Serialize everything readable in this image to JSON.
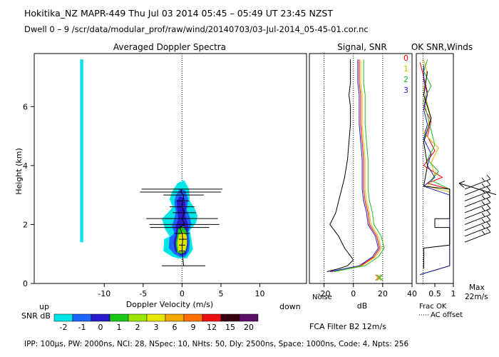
{
  "header": {
    "title": "Hokitika_NZ   MAPR-449   Thu Jul 03 2014 05:45 – 05:49 UT 23:45 NZST",
    "subtitle": "Dwell   0 –   9    /scr/data/modular_prof/raw/wind/20140703/03-Jul-2014_05-45-01.cor.nc"
  },
  "footer": {
    "params": "IPP: 100μs,  PW: 2000ns,  NCI:  28,  NSpec: 10,  NHts: 50,  Dly: 2500ns,  Space: 1000ns,  Code: 4,  Npts: 256",
    "filter": "FCA Filter B2 12m/s"
  },
  "colorbar": {
    "label": "SNR dB",
    "ticks": [
      "-2",
      "-1",
      "0",
      "1",
      "2",
      "3",
      "6",
      "9",
      "12",
      "15",
      "20"
    ],
    "colors": [
      "#00e5e5",
      "#1e64ff",
      "#2a1acc",
      "#1ac81a",
      "#9be400",
      "#e6e600",
      "#f2a800",
      "#ff7000",
      "#ee1010",
      "#3a0010",
      "#5a1066"
    ]
  },
  "chart_data": [
    {
      "type": "heatmap",
      "title": "Averaged Doppler Spectra",
      "xlabel": "Doppler Velocity (m/s)",
      "ylabel": "Height (km)",
      "xlim": [
        -19,
        16
      ],
      "ylim": [
        0,
        7.8
      ],
      "x_ticks": [
        -10,
        -5,
        0,
        5,
        10
      ],
      "y_ticks": [
        0,
        2,
        4,
        6
      ],
      "x_left_label": "up",
      "x_right_label": "down",
      "grid": false,
      "zero_line": "dotted",
      "contours": [
        {
          "snr_db": -2,
          "color": "#00e5e5",
          "points": [
            [
              -0.4,
              0.85
            ],
            [
              -1.2,
              0.9
            ],
            [
              -2.4,
              1.1
            ],
            [
              -2.3,
              1.5
            ],
            [
              -1.6,
              1.6
            ],
            [
              -2.2,
              1.85
            ],
            [
              -2.6,
              2.2
            ],
            [
              -1.8,
              2.4
            ],
            [
              -1.2,
              2.6
            ],
            [
              -1.6,
              2.85
            ],
            [
              -1.3,
              3.1
            ],
            [
              -0.6,
              3.4
            ],
            [
              0.3,
              3.5
            ],
            [
              0.9,
              3.2
            ],
            [
              1.0,
              2.8
            ],
            [
              1.6,
              2.55
            ],
            [
              2.0,
              2.3
            ],
            [
              1.8,
              2.05
            ],
            [
              1.0,
              1.8
            ],
            [
              1.2,
              1.5
            ],
            [
              1.4,
              1.15
            ],
            [
              0.6,
              0.85
            ]
          ]
        },
        {
          "snr_db": -1,
          "color": "#1e64ff",
          "points": [
            [
              -0.3,
              0.9
            ],
            [
              -1.0,
              1.0
            ],
            [
              -1.7,
              1.2
            ],
            [
              -1.6,
              1.55
            ],
            [
              -1.0,
              1.7
            ],
            [
              -1.3,
              1.95
            ],
            [
              -1.0,
              2.2
            ],
            [
              -0.8,
              2.45
            ],
            [
              -1.0,
              2.75
            ],
            [
              -0.8,
              3.0
            ],
            [
              -0.3,
              3.2
            ],
            [
              0.4,
              3.15
            ],
            [
              0.8,
              2.85
            ],
            [
              0.6,
              2.5
            ],
            [
              1.0,
              2.25
            ],
            [
              1.2,
              2.0
            ],
            [
              0.8,
              1.75
            ],
            [
              1.0,
              1.45
            ],
            [
              0.9,
              1.1
            ],
            [
              0.4,
              0.9
            ]
          ]
        },
        {
          "snr_db": 0,
          "color": "#2a1acc",
          "points": [
            [
              -0.2,
              0.95
            ],
            [
              -0.9,
              1.1
            ],
            [
              -1.1,
              1.4
            ],
            [
              -0.8,
              1.7
            ],
            [
              -0.8,
              1.95
            ],
            [
              -0.5,
              2.2
            ],
            [
              -0.6,
              2.5
            ],
            [
              -0.7,
              2.8
            ],
            [
              -0.3,
              2.95
            ],
            [
              0.3,
              2.9
            ],
            [
              0.5,
              2.6
            ],
            [
              0.4,
              2.3
            ],
            [
              0.8,
              2.0
            ],
            [
              0.7,
              1.7
            ],
            [
              0.8,
              1.35
            ],
            [
              0.5,
              1.0
            ]
          ]
        },
        {
          "snr_db": 1,
          "color": "#1ac81a",
          "points": [
            [
              -0.6,
              1.05
            ],
            [
              -0.8,
              1.35
            ],
            [
              -0.6,
              1.65
            ],
            [
              -0.5,
              1.85
            ],
            [
              0.1,
              1.95
            ],
            [
              0.6,
              1.75
            ],
            [
              0.7,
              1.4
            ],
            [
              0.5,
              1.1
            ],
            [
              0.0,
              1.0
            ]
          ]
        },
        {
          "snr_db": 3,
          "color": "#e6e600",
          "points": [
            [
              -0.5,
              1.1
            ],
            [
              -0.6,
              1.4
            ],
            [
              -0.4,
              1.65
            ],
            [
              0.2,
              1.75
            ],
            [
              0.6,
              1.6
            ],
            [
              0.6,
              1.3
            ],
            [
              0.4,
              1.1
            ],
            [
              0.0,
              1.05
            ]
          ]
        },
        {
          "snr_db": 0,
          "color": "#2a1acc",
          "points": [
            [
              -0.4,
              2.45
            ],
            [
              -0.5,
              2.75
            ],
            [
              -0.2,
              2.9
            ],
            [
              0.3,
              2.85
            ],
            [
              0.4,
              2.6
            ],
            [
              0.1,
              2.45
            ]
          ]
        },
        {
          "snr_db": -2,
          "color": "#00e5e5",
          "points": [
            [
              -13.1,
              1.4
            ],
            [
              -12.7,
              1.4
            ],
            [
              -12.7,
              7.6
            ],
            [
              -13.1,
              7.6
            ]
          ]
        }
      ],
      "error_bars": [
        {
          "height": 0.6,
          "center": 0.2,
          "half_width": 2.8
        },
        {
          "height": 1.1,
          "center": 0.0,
          "half_width": 0.4
        },
        {
          "height": 1.3,
          "center": 0.0,
          "half_width": 0.4
        },
        {
          "height": 1.5,
          "center": 0.1,
          "half_width": 0.5
        },
        {
          "height": 1.7,
          "center": 0.0,
          "half_width": 1.0
        },
        {
          "height": 1.9,
          "center": -0.3,
          "half_width": 3.8
        },
        {
          "height": 2.0,
          "center": 0.3,
          "half_width": 4.5
        },
        {
          "height": 2.2,
          "center": 0.0,
          "half_width": 4.6
        },
        {
          "height": 2.4,
          "center": 0.3,
          "half_width": 1.5
        },
        {
          "height": 2.6,
          "center": 0.0,
          "half_width": 1.6
        },
        {
          "height": 2.8,
          "center": 0.1,
          "half_width": 0.8
        },
        {
          "height": 3.0,
          "center": 0.2,
          "half_width": 2.6
        },
        {
          "height": 3.1,
          "center": -0.2,
          "half_width": 5.2
        },
        {
          "height": 3.2,
          "center": 0.0,
          "half_width": 5.2
        }
      ]
    },
    {
      "type": "line",
      "title": "Signal, SNR",
      "xlabel": "dB",
      "xlim": [
        -30,
        40
      ],
      "ylim": [
        0,
        7.8
      ],
      "x_ticks": [
        -20,
        0,
        20,
        40
      ],
      "reference_lines": [
        -20,
        0,
        20
      ],
      "annotations": [
        "Noise"
      ],
      "series": [
        {
          "name": "0",
          "color": "#ff0000",
          "x": [
            -15,
            -5,
            5,
            14,
            18,
            16,
            11,
            10,
            8,
            7,
            7,
            7,
            6,
            5,
            5,
            5,
            4,
            4,
            4,
            4
          ],
          "y": [
            0.4,
            0.5,
            0.6,
            0.9,
            1.2,
            1.6,
            2.0,
            2.4,
            2.8,
            3.2,
            3.6,
            4.2,
            4.8,
            5.4,
            6.0,
            6.4,
            6.8,
            7.0,
            7.3,
            7.6
          ]
        },
        {
          "name": "1",
          "color": "#e6b800",
          "x": [
            -14,
            -4,
            6,
            15,
            19,
            17,
            12,
            11,
            9,
            8,
            8,
            8,
            7,
            6,
            6,
            6,
            5,
            5,
            5,
            5
          ],
          "y": [
            0.4,
            0.5,
            0.6,
            0.9,
            1.2,
            1.6,
            2.0,
            2.4,
            2.8,
            3.2,
            3.6,
            4.2,
            4.8,
            5.4,
            6.0,
            6.4,
            6.8,
            7.0,
            7.3,
            7.6
          ]
        },
        {
          "name": "2",
          "color": "#20c020",
          "x": [
            -13,
            -3,
            8,
            17,
            21,
            19,
            14,
            13,
            11,
            10,
            10,
            10,
            9,
            8,
            8,
            8,
            7,
            7,
            7,
            7
          ],
          "y": [
            0.4,
            0.5,
            0.6,
            0.9,
            1.2,
            1.6,
            2.0,
            2.4,
            2.8,
            3.2,
            3.6,
            4.2,
            4.8,
            5.4,
            6.0,
            6.4,
            6.8,
            7.0,
            7.3,
            7.6
          ]
        },
        {
          "name": "3",
          "color": "#2020c0",
          "x": [
            -16,
            -6,
            4,
            13,
            17,
            15,
            10,
            9,
            7,
            6,
            6,
            6,
            5,
            4,
            4,
            4,
            3,
            3,
            3,
            3
          ],
          "y": [
            0.4,
            0.5,
            0.6,
            0.9,
            1.2,
            1.6,
            2.0,
            2.4,
            2.8,
            3.2,
            3.6,
            4.2,
            4.8,
            5.4,
            6.0,
            6.4,
            6.8,
            7.0,
            7.3,
            7.6
          ]
        },
        {
          "name": "",
          "color": "#000000",
          "x": [
            -18,
            -10,
            -4,
            0,
            -6,
            -10,
            -16,
            -12,
            -10,
            -8,
            -6,
            -4,
            -3,
            -2,
            -2,
            -3,
            -2,
            -2,
            -2
          ],
          "y": [
            0.4,
            0.5,
            0.6,
            0.8,
            1.2,
            1.6,
            2.0,
            2.4,
            2.8,
            3.2,
            3.6,
            4.2,
            4.8,
            5.4,
            6.0,
            6.4,
            6.8,
            7.2,
            7.6
          ]
        }
      ],
      "markers": [
        {
          "x": 17,
          "y": 0.2
        },
        {
          "x": 18,
          "y": 0.2
        }
      ]
    },
    {
      "type": "line",
      "title": "OK SNR,Winds",
      "xlabel": "Frac OK",
      "xlim": [
        0,
        1
      ],
      "ylim": [
        0,
        7.8
      ],
      "x_ticks": [
        0.5,
        1
      ],
      "legend": [
        "0",
        "1",
        "2",
        "3"
      ],
      "legend_colors": [
        "#ff0000",
        "#e6b800",
        "#20c020",
        "#2020c0"
      ],
      "annotations": [
        "AC offset",
        "Max",
        "22m/s"
      ],
      "series": [
        {
          "name": "0",
          "color": "#ff0000",
          "x": [
            0.1,
            0.9,
            0.9,
            0.9,
            0.9,
            0.3,
            0.7,
            0.2,
            0.5,
            0.3,
            0.4,
            0.2,
            0.3,
            0.2,
            0.1
          ],
          "y": [
            0.3,
            0.6,
            1.5,
            2.5,
            3.2,
            3.4,
            3.6,
            4.0,
            4.5,
            5.0,
            5.5,
            6.0,
            6.5,
            7.0,
            7.5
          ]
        },
        {
          "name": "1",
          "color": "#e6b800",
          "x": [
            0.1,
            0.9,
            0.9,
            0.9,
            0.9,
            0.3,
            0.5,
            0.4,
            0.6,
            0.2,
            0.4,
            0.3,
            0.2,
            0.3,
            0.2
          ],
          "y": [
            0.3,
            0.6,
            1.5,
            2.5,
            3.1,
            3.3,
            3.7,
            4.1,
            4.6,
            5.1,
            5.6,
            6.1,
            6.6,
            7.1,
            7.6
          ]
        },
        {
          "name": "2",
          "color": "#20c020",
          "x": [
            0.1,
            0.9,
            0.9,
            0.9,
            0.9,
            0.4,
            0.6,
            0.3,
            0.5,
            0.4,
            0.3,
            0.2,
            0.4,
            0.2,
            0.3
          ],
          "y": [
            0.3,
            0.6,
            1.5,
            2.5,
            3.2,
            3.5,
            3.8,
            4.2,
            4.7,
            5.2,
            5.7,
            6.2,
            6.7,
            7.2,
            7.6
          ]
        },
        {
          "name": "3",
          "color": "#2020c0",
          "x": [
            0.1,
            0.9,
            0.9,
            0.9,
            0.9,
            0.2,
            0.5,
            0.3,
            0.4,
            0.2,
            0.3,
            0.2,
            0.3,
            0.2,
            0.2
          ],
          "y": [
            0.3,
            0.6,
            1.5,
            2.5,
            3.0,
            3.3,
            3.6,
            4.0,
            4.4,
            4.9,
            5.4,
            5.9,
            6.4,
            6.9,
            7.4
          ]
        },
        {
          "name": "",
          "color": "#000000",
          "x": [
            0.2,
            0.2,
            0.9,
            0.9,
            0.5,
            0.5,
            0.9,
            0.9,
            0.2,
            0.3,
            0.2,
            0.4,
            0.2,
            0.3
          ],
          "y": [
            0.5,
            1.2,
            1.3,
            1.9,
            1.9,
            2.2,
            2.2,
            3.2,
            3.3,
            4.0,
            4.8,
            5.6,
            6.4,
            7.2
          ]
        }
      ],
      "wind_barbs_heights": [
        1.4,
        1.6,
        1.8,
        2.0,
        2.2,
        2.4,
        2.6,
        2.8,
        3.0,
        3.2
      ],
      "max_wind_height": 3.4
    }
  ]
}
